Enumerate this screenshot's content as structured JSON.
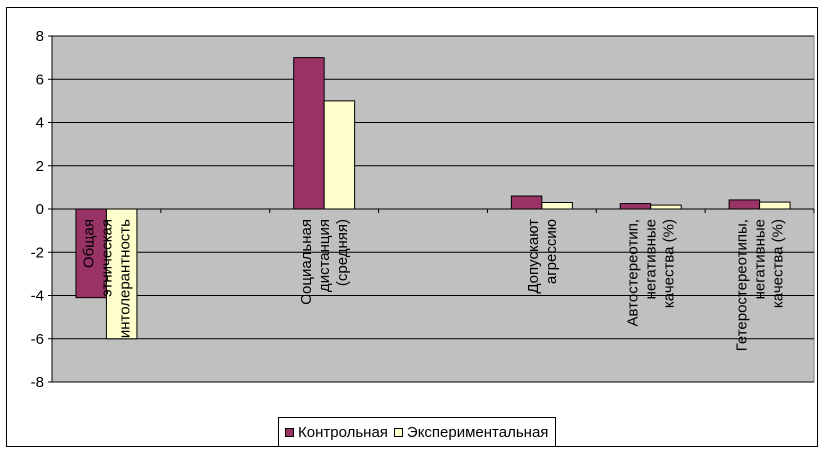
{
  "chart_data": {
    "type": "bar",
    "title": "",
    "xlabel": "",
    "ylabel": "",
    "ylim": [
      -8,
      8
    ],
    "yticks": [
      -8,
      -6,
      -4,
      -2,
      0,
      2,
      4,
      6,
      8
    ],
    "grid": true,
    "legend_position": "bottom",
    "categories": [
      "Общая этническая интолерантность",
      "",
      "Социальная дистанция (средняя)",
      "",
      "Допускают агрессию",
      "Автостереотип, негативные качества (%)",
      "Гетеростереотипы, негативные качества (%)"
    ],
    "category_lines": [
      [
        "Общая",
        "этническая",
        "интолерантность"
      ],
      [],
      [
        "Социальная",
        "дистанция",
        "(средняя)"
      ],
      [],
      [
        "Допускают",
        "агрессию"
      ],
      [
        "Автостереотип,",
        "негативные",
        "качества (%)"
      ],
      [
        "Гетеростереотипы,",
        "негативные",
        "качества (%)"
      ]
    ],
    "series": [
      {
        "name": "Контрольная",
        "values": [
          -4.1,
          null,
          7.0,
          null,
          0.6,
          0.25,
          0.42
        ],
        "color": "#993366"
      },
      {
        "name": "Экспериментальная",
        "values": [
          -6.0,
          null,
          5.0,
          null,
          0.3,
          0.18,
          0.32
        ],
        "color": "#FFFFCC"
      }
    ],
    "plot_background": "#C0C0C0"
  }
}
